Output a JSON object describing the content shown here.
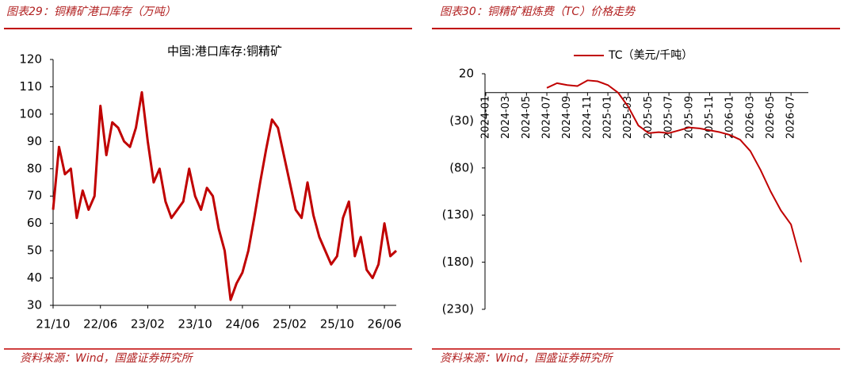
{
  "chart_data": [
    {
      "type": "line",
      "caption": "图表29：铜精矿港口库存（万吨）",
      "title": "中国:港口库存:铜精矿",
      "source": "资料来源：Wind，国盛证券研究所",
      "categories": [
        "21/10",
        null,
        null,
        null,
        null,
        null,
        null,
        null,
        "22/06",
        null,
        null,
        null,
        null,
        null,
        null,
        null,
        "23/02",
        null,
        null,
        null,
        null,
        null,
        null,
        null,
        "23/10",
        null,
        null,
        null,
        null,
        null,
        null,
        null,
        "24/06",
        null,
        null,
        null,
        null,
        null,
        null,
        null,
        "25/02",
        null,
        null,
        null,
        null,
        null,
        null,
        null,
        "25/10",
        null,
        null,
        null,
        null,
        null,
        null,
        null,
        "26/06",
        null,
        null
      ],
      "values": [
        65,
        88,
        78,
        80,
        62,
        72,
        65,
        70,
        103,
        85,
        97,
        95,
        90,
        88,
        95,
        108,
        90,
        75,
        80,
        68,
        62,
        65,
        68,
        80,
        70,
        65,
        73,
        70,
        58,
        50,
        32,
        38,
        42,
        50,
        62,
        75,
        87,
        98,
        95,
        85,
        75,
        65,
        62,
        75,
        63,
        55,
        50,
        45,
        48,
        62,
        68,
        48,
        55,
        43,
        40,
        45,
        60,
        48,
        50
      ],
      "color": "#c00000",
      "ylim": [
        30,
        120
      ],
      "yticks": [
        30,
        40,
        50,
        60,
        70,
        80,
        90,
        100,
        110,
        120
      ]
    },
    {
      "type": "line",
      "caption": "图表30：铜精矿粗炼费（TC）价格走势",
      "source": "资料来源：Wind，国盛证券研究所",
      "categories": [
        "2024-01",
        null,
        "2024-03",
        null,
        "2024-05",
        null,
        "2024-07",
        null,
        "2024-09",
        null,
        "2024-11",
        null,
        "2025-01",
        null,
        "2025-03",
        null,
        "2025-05",
        null,
        "2025-07",
        null,
        "2025-09",
        null,
        "2025-11",
        null,
        "2026-01",
        null,
        "2026-03",
        null,
        "2026-05",
        null,
        "2026-07",
        null
      ],
      "series": [
        {
          "name": "TC（美元/千吨）",
          "color": "#c00000",
          "values": [
            null,
            null,
            null,
            null,
            null,
            null,
            5,
            10,
            8,
            7,
            13,
            12,
            8,
            0,
            -15,
            -35,
            -43,
            -42,
            -43,
            -40,
            -37,
            -38,
            -40,
            -42,
            -45,
            -50,
            -62,
            -82,
            -105,
            -125,
            -140,
            -180
          ]
        }
      ],
      "ylim": [
        -230,
        20
      ],
      "yticks": [
        20,
        {
          "value": -30,
          "label": "(30)"
        },
        {
          "value": -80,
          "label": "(80)"
        },
        {
          "value": -130,
          "label": "(130)"
        },
        {
          "value": -180,
          "label": "(180)"
        },
        {
          "value": -230,
          "label": "(230)"
        }
      ]
    }
  ]
}
